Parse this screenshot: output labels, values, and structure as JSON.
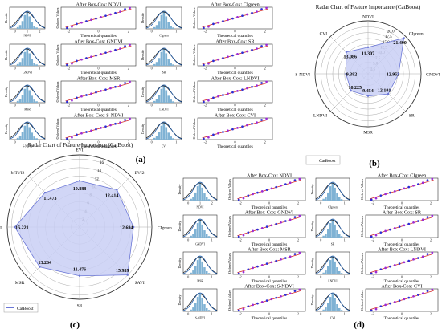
{
  "colors": {
    "hist": "#7fb2d4",
    "kde": "#1f5aa6",
    "normal": "#111111",
    "qq_point_a": "#2b2bd6",
    "qq_point_b": "#9a2bd6",
    "qq_line": "#d62b2b",
    "radar_fill": "#c9cff5",
    "radar_line": "#6a76d6",
    "grid": "#aaaaaa"
  },
  "chart_data": [
    {
      "type": "radar",
      "panel_label": "(b)",
      "title": "Radar Chart of Feature Importance (CatBoost)",
      "axes": [
        "NDVI",
        "CIgreen",
        "GNDVI",
        "SR",
        "MSR",
        "LNDVI",
        "S-NDVI",
        "CVI"
      ],
      "values": [
        11.307,
        21.49,
        12.952,
        12.101,
        9.454,
        10.225,
        9.382,
        13.086
      ],
      "value_labels": [
        "11.307",
        "21.490",
        "12.952",
        "12.101",
        "9.454",
        "10.225",
        "9.382",
        "13.086"
      ],
      "ticks": [
        2.5,
        5.0,
        7.5,
        10.0,
        12.5,
        15.0,
        17.5,
        20.0
      ],
      "tick_labels": [
        "2.5",
        "5.0",
        "7.5",
        "10.0",
        "12.5",
        "15.0",
        "17.5",
        "20.0"
      ],
      "rmax": 22.5,
      "legend": "CatBoost",
      "legend_position": "bottom-left",
      "grid": true
    },
    {
      "type": "radar",
      "panel_label": "(c)",
      "title": "Radar Chart of Feature Importance (CatBoost)",
      "axes": [
        "EVI",
        "EVI2",
        "CIgreen",
        "SAVI",
        "SR",
        "MSR",
        "MSAVI",
        "MTVI2"
      ],
      "values": [
        10.888,
        12.414,
        12.694,
        15.939,
        11.476,
        13.264,
        15.221,
        11.473
      ],
      "value_labels": [
        "10.888",
        "12.414",
        "12.694",
        "15.939",
        "11.476",
        "13.264",
        "15.221",
        "11.473"
      ],
      "ticks": [
        2,
        4,
        6,
        8,
        10,
        12,
        14,
        16
      ],
      "tick_labels": [
        "2",
        "4",
        "6",
        "8",
        "10",
        "12",
        "14",
        "16"
      ],
      "rmax": 17,
      "legend": "CatBoost",
      "legend_position": "bottom-left",
      "grid": true
    },
    {
      "type": "histogram-qq-grid",
      "panel_label": "(a)",
      "density_ylabel": "Density",
      "qq_ylabel": "Ordered Values",
      "qq_xlabel": "Theoretical quantiles",
      "qq_xticks": [
        "-2",
        "0",
        "2"
      ],
      "cells": [
        {
          "index": "NDVI",
          "title": "After Box-Cox: NDVI",
          "xticks": [
            "0",
            "1",
            "2"
          ]
        },
        {
          "index": "CIgreen",
          "title": "After Box-Cox: CIgreen",
          "xticks": [
            "0",
            "1"
          ]
        },
        {
          "index": "GNDVI",
          "title": "After Box-Cox: GNDVI",
          "xticks": [
            "0",
            "1"
          ]
        },
        {
          "index": "SR",
          "title": "After Box-Cox: SR",
          "xticks": [
            "0",
            "1"
          ]
        },
        {
          "index": "MSR",
          "title": "After Box-Cox: MSR",
          "xticks": [
            "0",
            "1"
          ]
        },
        {
          "index": "LNDVI",
          "title": "After Box-Cox: LNDVI",
          "xticks": [
            "0",
            "1"
          ]
        },
        {
          "index": "S-NDVI",
          "title": "After Box-Cox: S-NDVI",
          "xticks": [
            "0",
            "1"
          ]
        },
        {
          "index": "CVI",
          "title": "After Box-Cox: CVI",
          "xticks": [
            "0",
            "1"
          ]
        }
      ]
    },
    {
      "type": "histogram-qq-grid",
      "panel_label": "(d)",
      "density_ylabel": "Density",
      "qq_ylabel": "Ordered Values",
      "qq_xlabel": "Theoretical quantiles",
      "qq_xticks": [
        "-2",
        "0",
        "2"
      ],
      "cells": [
        {
          "index": "NDVI",
          "title": "After Box-Cox: NDVI",
          "xticks": [
            "0",
            "1",
            "2"
          ]
        },
        {
          "index": "CIgreen",
          "title": "After Box-Cox: CIgreen",
          "xticks": [
            "0",
            "1"
          ]
        },
        {
          "index": "GNDVI",
          "title": "After Box-Cox: GNDVI",
          "xticks": [
            "0",
            "1"
          ]
        },
        {
          "index": "SR",
          "title": "After Box-Cox: SR",
          "xticks": [
            "0",
            "1"
          ]
        },
        {
          "index": "MSR",
          "title": "After Box-Cox: MSR",
          "xticks": [
            "0",
            "1"
          ]
        },
        {
          "index": "LNDVI",
          "title": "After Box-Cox: LNDVI",
          "xticks": [
            "0",
            "1"
          ]
        },
        {
          "index": "S-NDVI",
          "title": "After Box-Cox: S-NDVI",
          "xticks": [
            "0",
            "1"
          ]
        },
        {
          "index": "CVI",
          "title": "After Box-Cox: CVI",
          "xticks": [
            "0",
            "1"
          ]
        }
      ]
    }
  ]
}
